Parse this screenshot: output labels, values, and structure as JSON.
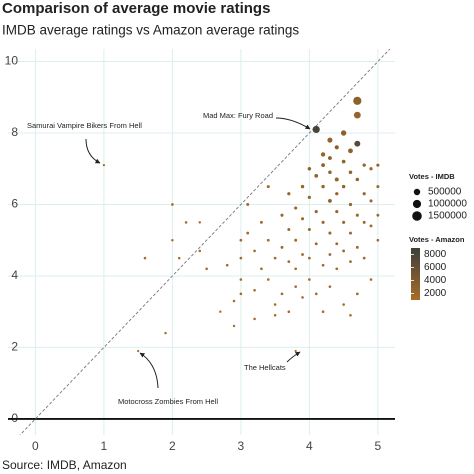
{
  "chart_data": {
    "type": "scatter",
    "title": "Comparison of average movie ratings",
    "subtitle": "IMDB average ratings vs Amazon average ratings",
    "source": "Source: IMDB, Amazon",
    "x": [
      1.0,
      4.1,
      3.8,
      1.5,
      4.7,
      4.7,
      4.7,
      4.5,
      4.6,
      4.3,
      4.2,
      4.4,
      4.3,
      1.6,
      1.9,
      2.0,
      2.0,
      2.1,
      2.2,
      2.4,
      2.4,
      2.5,
      2.7,
      2.8,
      2.9,
      2.9,
      3.0,
      3.0,
      3.0,
      3.0,
      3.1,
      3.1,
      3.2,
      3.2,
      3.2,
      3.3,
      3.3,
      3.4,
      3.4,
      3.4,
      3.5,
      3.5,
      3.5,
      3.6,
      3.6,
      3.6,
      3.7,
      3.7,
      3.7,
      3.7,
      3.8,
      3.8,
      3.8,
      3.8,
      3.9,
      3.9,
      3.9,
      3.9,
      4.0,
      4.0,
      4.0,
      4.0,
      4.0,
      4.1,
      4.1,
      4.1,
      4.1,
      4.2,
      4.2,
      4.2,
      4.2,
      4.2,
      4.3,
      4.3,
      4.3,
      4.3,
      4.3,
      4.4,
      4.4,
      4.4,
      4.4,
      4.4,
      4.5,
      4.5,
      4.5,
      4.5,
      4.5,
      4.6,
      4.6,
      4.6,
      4.6,
      4.7,
      4.7,
      4.7,
      4.7,
      4.8,
      4.8,
      4.8,
      4.8,
      4.9,
      4.9,
      4.9,
      5.0,
      5.0,
      5.0,
      5.0,
      4.9,
      4.6
    ],
    "values": [
      7.1,
      8.1,
      1.9,
      1.9,
      8.9,
      8.5,
      7.7,
      8.0,
      7.5,
      7.8,
      7.4,
      6.7,
      6.1,
      4.5,
      2.4,
      6.0,
      5.0,
      4.5,
      5.5,
      5.5,
      4.7,
      4.2,
      3.0,
      4.3,
      3.3,
      2.6,
      5.0,
      4.5,
      3.9,
      3.5,
      6.0,
      5.2,
      4.7,
      3.6,
      2.8,
      5.5,
      4.2,
      6.5,
      5.0,
      3.9,
      4.5,
      3.2,
      2.9,
      5.7,
      4.8,
      3.5,
      6.3,
      5.3,
      4.4,
      3.0,
      5.9,
      5.0,
      4.2,
      3.7,
      6.5,
      5.6,
      4.6,
      3.4,
      7.0,
      6.2,
      5.3,
      4.5,
      3.9,
      6.8,
      5.8,
      4.9,
      3.5,
      7.1,
      6.5,
      5.5,
      4.3,
      3.0,
      7.3,
      6.9,
      5.2,
      4.6,
      3.7,
      7.6,
      6.3,
      5.8,
      4.9,
      4.2,
      7.2,
      6.5,
      5.5,
      4.7,
      3.2,
      6.9,
      6.0,
      5.2,
      4.4,
      6.7,
      5.7,
      4.8,
      3.5,
      7.1,
      6.3,
      5.5,
      4.5,
      7.0,
      6.1,
      5.4,
      7.1,
      6.5,
      5.7,
      5.0,
      3.9,
      2.9
    ],
    "sizes": [
      2000,
      700000,
      1500,
      1200,
      1000000,
      600000,
      400000,
      300000,
      200000,
      250000,
      150000,
      100000,
      80000,
      8000,
      5000,
      9000,
      6000,
      7000,
      8000,
      6000,
      7000,
      9000,
      5000,
      10000,
      8000,
      6000,
      15000,
      12000,
      10000,
      9000,
      20000,
      15000,
      12000,
      10000,
      8000,
      18000,
      12000,
      25000,
      15000,
      10000,
      14000,
      9000,
      8000,
      30000,
      20000,
      12000,
      40000,
      25000,
      15000,
      9000,
      35000,
      22000,
      14000,
      10000,
      50000,
      30000,
      18000,
      10000,
      60000,
      40000,
      25000,
      15000,
      12000,
      70000,
      35000,
      20000,
      10000,
      80000,
      50000,
      30000,
      16000,
      9000,
      90000,
      60000,
      28000,
      18000,
      12000,
      120000,
      45000,
      35000,
      20000,
      14000,
      70000,
      50000,
      30000,
      18000,
      10000,
      60000,
      40000,
      25000,
      15000,
      55000,
      30000,
      20000,
      12000,
      45000,
      35000,
      25000,
      15000,
      40000,
      30000,
      20000,
      35000,
      25000,
      18000,
      12000,
      10000,
      9000
    ],
    "color_values": [
      1500,
      8000,
      1800,
      1500,
      3000,
      2500,
      7000,
      3000,
      3000,
      2500,
      2500,
      2500,
      3000,
      1200,
      1100,
      1300,
      1200,
      1200,
      1300,
      1200,
      1200,
      1300,
      1100,
      1300,
      1200,
      1100,
      1500,
      1400,
      1300,
      1200,
      1600,
      1500,
      1400,
      1300,
      1200,
      1600,
      1400,
      1800,
      1500,
      1300,
      1400,
      1200,
      1200,
      1900,
      1600,
      1300,
      2200,
      1800,
      1500,
      1200,
      2000,
      1700,
      1400,
      1300,
      2400,
      1900,
      1600,
      1300,
      2600,
      2100,
      1800,
      1500,
      1400,
      2800,
      2000,
      1700,
      1300,
      3000,
      2400,
      1900,
      1500,
      1200,
      3200,
      2700,
      1800,
      1600,
      1400,
      3500,
      2300,
      2100,
      1700,
      1500,
      2800,
      2500,
      2000,
      1600,
      1300,
      2700,
      2200,
      1800,
      1500,
      2600,
      2000,
      1700,
      1400,
      2500,
      2200,
      1900,
      1500,
      2300,
      2000,
      1700,
      2200,
      1900,
      1600,
      1400,
      1300,
      1200
    ],
    "xlim": [
      -0.4,
      5.25
    ],
    "xticks": [
      0,
      1,
      2,
      3,
      4,
      5
    ],
    "ylim": [
      -0.45,
      10.35
    ],
    "yticks": [
      0,
      2,
      4,
      6,
      8,
      10
    ],
    "grid": true,
    "size_legend_title": "Votes - IMDB",
    "size_legend": [
      500000,
      1000000,
      1500000
    ],
    "color_legend_title": "Votes - Amazon",
    "color_lim": [
      1000,
      9000
    ],
    "color_ticks": [
      2000,
      4000,
      6000,
      8000
    ],
    "color_low": "#a86d28",
    "color_high": "#3d3d3d",
    "annotations": [
      "Samurai Vampire Bikers From Hell",
      "Mad Max: Fury Road",
      "The Hellcats",
      "Motocross Zombies From Hell"
    ]
  }
}
